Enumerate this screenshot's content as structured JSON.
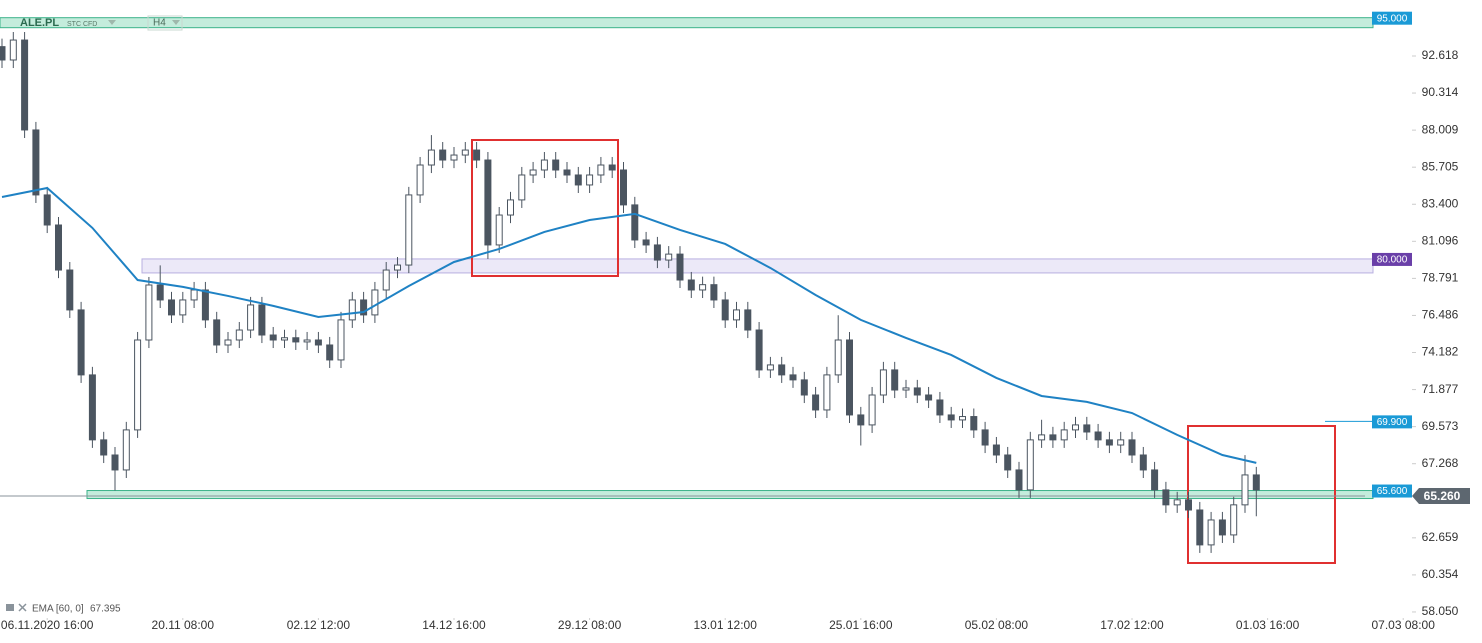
{
  "chart_data": {
    "type": "candlestick",
    "symbol": "ALE.PL",
    "instrument": "STC CFD",
    "timeframe": "H4",
    "xlim": [
      0,
      130
    ],
    "xticks": [
      {
        "value": 4,
        "label": "06.11.2020 16:00"
      },
      {
        "value": 16,
        "label": "20.11 08:00"
      },
      {
        "value": 28,
        "label": "02.12 12:00"
      },
      {
        "value": 40,
        "label": "14.12 16:00"
      },
      {
        "value": 52,
        "label": "29.12 08:00"
      },
      {
        "value": 64,
        "label": "13.01 12:00"
      },
      {
        "value": 76,
        "label": "25.01 16:00"
      },
      {
        "value": 88,
        "label": "05.02 08:00"
      },
      {
        "value": 100,
        "label": "17.02 12:00"
      },
      {
        "value": 112,
        "label": "01.03 16:00"
      },
      {
        "value": 124,
        "label": "07.03 08:00"
      }
    ],
    "ylim": [
      57.55,
      96.1
    ],
    "yticks": [
      92.618,
      90.314,
      88.009,
      85.705,
      {
        "value": 83.4,
        "label": "83.400"
      },
      81.096,
      78.791,
      76.486,
      74.182,
      71.877,
      69.573,
      67.268,
      62.659,
      60.354,
      {
        "value": 58.05,
        "label": "58.050"
      }
    ],
    "up_color": "#ffffff",
    "down_color": "#4b5560",
    "open": [
      93.2,
      92.37,
      93.61,
      88.02,
      83.98,
      82.11,
      79.31,
      76.83,
      72.79,
      68.75,
      67.81,
      66.88,
      69.37,
      74.96,
      78.38,
      77.45,
      76.52,
      77.45,
      78.07,
      76.21,
      74.65,
      74.96,
      75.58,
      77.14,
      75.27,
      74.96,
      75.1,
      74.84,
      74.96,
      74.65,
      73.72,
      76.21,
      77.45,
      76.52,
      78.07,
      79.31,
      79.62,
      83.98,
      85.84,
      86.77,
      86.15,
      86.46,
      86.77,
      86.15,
      80.87,
      82.73,
      83.67,
      85.22,
      85.53,
      86.15,
      85.53,
      85.22,
      84.6,
      85.22,
      85.84,
      85.53,
      83.36,
      81.18,
      80.87,
      79.93,
      80.3,
      78.69,
      78.07,
      78.4,
      77.45,
      76.21,
      76.83,
      75.58,
      73.1,
      73.41,
      72.79,
      72.48,
      71.54,
      70.61,
      72.79,
      74.96,
      70.3,
      69.68,
      71.54,
      73.1,
      71.85,
      71.98,
      71.54,
      71.23,
      70.3,
      69.99,
      70.2,
      69.37,
      68.43,
      67.81,
      66.88,
      65.64,
      68.75,
      69.06,
      68.75,
      69.37,
      69.68,
      69.24,
      68.75,
      68.43,
      68.75,
      67.81,
      66.88,
      65.64,
      64.71,
      65.02,
      64.39,
      62.22,
      63.77,
      62.84,
      64.71,
      66.57
    ],
    "high": [
      93.7,
      94.11,
      94.11,
      88.52,
      84.48,
      82.61,
      79.81,
      77.33,
      73.29,
      69.25,
      68.31,
      69.87,
      75.46,
      78.88,
      79.6,
      77.95,
      77.95,
      78.57,
      78.57,
      76.71,
      75.46,
      76.08,
      77.64,
      77.64,
      75.77,
      75.6,
      75.6,
      75.46,
      75.46,
      75.15,
      76.71,
      77.95,
      77.95,
      78.57,
      79.81,
      80.12,
      84.48,
      86.34,
      87.7,
      87.27,
      86.96,
      87.27,
      87.27,
      86.65,
      83.23,
      84.17,
      85.72,
      86.03,
      86.65,
      86.65,
      86.03,
      85.72,
      85.72,
      86.34,
      86.34,
      86.03,
      83.86,
      81.68,
      81.37,
      80.8,
      80.8,
      79.19,
      78.9,
      78.9,
      77.95,
      77.33,
      77.33,
      76.08,
      73.91,
      73.91,
      73.29,
      72.98,
      72.04,
      73.29,
      76.5,
      75.46,
      70.8,
      72.04,
      73.6,
      73.6,
      72.48,
      72.48,
      72.04,
      71.73,
      70.8,
      70.7,
      70.7,
      69.87,
      68.93,
      68.31,
      67.38,
      69.25,
      70.0,
      69.56,
      69.87,
      70.18,
      70.18,
      69.74,
      69.25,
      69.25,
      69.25,
      68.31,
      67.38,
      66.14,
      65.52,
      65.52,
      64.89,
      64.27,
      64.27,
      65.21,
      67.8,
      67.07
    ],
    "low": [
      91.87,
      91.87,
      87.52,
      83.48,
      81.61,
      78.81,
      76.33,
      72.29,
      68.25,
      67.31,
      65.6,
      66.38,
      68.87,
      74.46,
      76.95,
      76.02,
      76.02,
      76.95,
      75.71,
      74.15,
      74.15,
      74.46,
      75.08,
      74.77,
      74.46,
      74.46,
      74.34,
      74.34,
      74.15,
      73.22,
      73.22,
      75.71,
      76.02,
      76.02,
      77.57,
      78.81,
      79.12,
      83.48,
      85.34,
      85.65,
      85.65,
      85.96,
      85.65,
      80.0,
      80.37,
      82.23,
      83.17,
      84.72,
      85.03,
      85.03,
      84.72,
      84.1,
      84.1,
      84.72,
      85.03,
      82.86,
      80.68,
      80.37,
      79.43,
      79.43,
      78.19,
      77.57,
      77.57,
      76.95,
      75.71,
      75.71,
      75.08,
      72.6,
      72.6,
      72.29,
      71.98,
      71.04,
      70.11,
      70.11,
      72.29,
      69.8,
      68.4,
      69.18,
      71.04,
      71.35,
      71.35,
      71.04,
      70.73,
      69.8,
      69.49,
      69.49,
      68.87,
      67.93,
      67.31,
      66.38,
      65.14,
      65.14,
      68.25,
      68.25,
      68.25,
      68.87,
      68.74,
      68.25,
      67.93,
      67.93,
      67.31,
      66.38,
      65.14,
      64.21,
      64.21,
      63.89,
      61.72,
      61.72,
      62.34,
      62.34,
      64.21,
      64.0
    ],
    "close": [
      92.37,
      93.61,
      88.02,
      83.98,
      82.11,
      79.31,
      76.83,
      72.79,
      68.75,
      67.81,
      66.88,
      69.37,
      74.96,
      78.38,
      77.45,
      76.52,
      77.45,
      78.07,
      76.21,
      74.65,
      74.96,
      75.58,
      77.14,
      75.27,
      74.96,
      75.1,
      74.84,
      74.96,
      74.65,
      73.72,
      76.21,
      77.45,
      76.52,
      78.07,
      79.31,
      79.62,
      83.98,
      85.84,
      86.77,
      86.15,
      86.46,
      86.77,
      86.15,
      80.87,
      82.73,
      83.67,
      85.22,
      85.53,
      86.15,
      85.53,
      85.22,
      84.6,
      85.22,
      85.84,
      85.53,
      83.36,
      81.18,
      80.87,
      79.93,
      80.3,
      78.69,
      78.07,
      78.4,
      77.45,
      76.21,
      76.83,
      75.58,
      73.1,
      73.41,
      72.79,
      72.48,
      71.54,
      70.61,
      72.79,
      74.96,
      70.3,
      69.68,
      71.54,
      73.1,
      71.85,
      71.98,
      71.54,
      71.23,
      70.3,
      69.99,
      70.2,
      69.37,
      68.43,
      67.81,
      66.88,
      65.64,
      68.75,
      69.06,
      68.75,
      69.37,
      69.68,
      69.24,
      68.75,
      68.43,
      68.75,
      67.81,
      66.88,
      65.64,
      64.71,
      65.02,
      64.39,
      62.22,
      63.77,
      62.84,
      64.71,
      66.57,
      65.64
    ],
    "ema": {
      "name": "EMA [60, 0]",
      "last": 67.395,
      "color": "#1f82c4",
      "x": [
        0,
        4,
        8,
        12,
        16,
        20,
        24,
        28,
        32,
        36,
        40,
        44,
        48,
        52,
        56,
        60,
        64,
        68,
        72,
        76,
        80,
        84,
        88,
        92,
        96,
        100,
        104,
        108,
        111
      ],
      "values": [
        83.85,
        84.41,
        81.93,
        78.69,
        78.26,
        77.7,
        77.08,
        76.39,
        76.7,
        78.32,
        79.81,
        80.62,
        81.68,
        82.42,
        82.8,
        81.8,
        80.93,
        79.44,
        77.76,
        76.21,
        75.09,
        74.03,
        72.6,
        71.48,
        71.11,
        70.42,
        69.06,
        67.81,
        67.32
      ]
    },
    "levels": [
      {
        "value": 95,
        "label": "95.000",
        "color": "#1a9ad6"
      },
      {
        "value": 80,
        "label": "80.000",
        "color": "#6a3fa8"
      },
      {
        "value": 69.9,
        "label": "69.900",
        "color": "#1a9ad6"
      },
      {
        "value": 65.6,
        "label": "65.600",
        "color": "#1a9ad6"
      }
    ],
    "last_price": {
      "value": 65.26,
      "label": "65.260",
      "color": "#5d6770"
    }
  }
}
